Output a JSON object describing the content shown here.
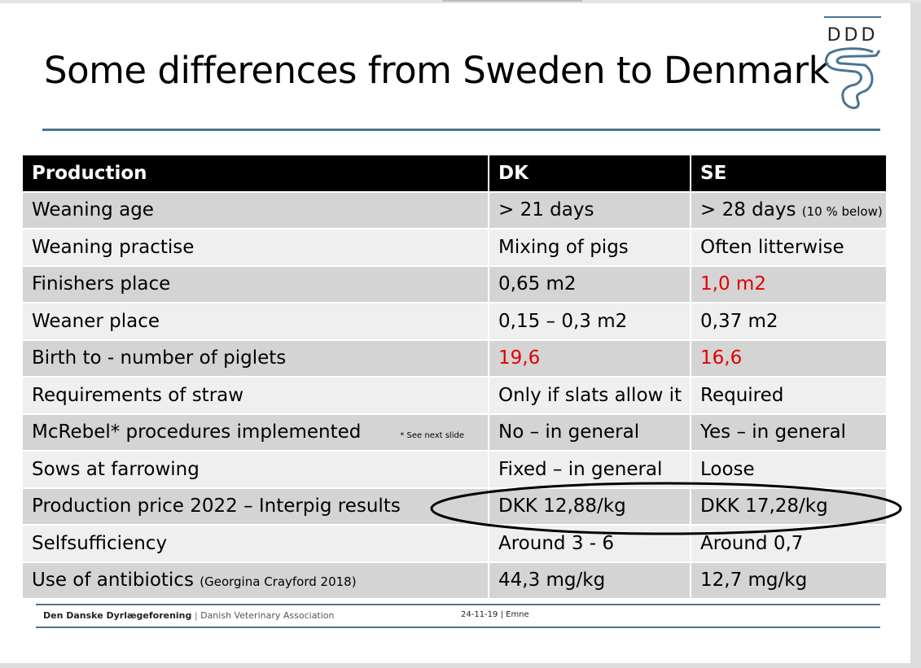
{
  "title": "Some differences from Sweden to Denmark",
  "logo_text": "DDD",
  "table": {
    "headers": [
      "Production",
      "DK",
      "SE"
    ],
    "rows": [
      {
        "label": "Weaning age",
        "dk": "> 21 days",
        "se": "> 28 days",
        "se_note": "(10 % below)"
      },
      {
        "label": "Weaning practise",
        "dk": "Mixing of pigs",
        "se": "Often litterwise"
      },
      {
        "label": "Finishers place",
        "dk": "0,65 m2",
        "se": "1,0 m2"
      },
      {
        "label": "Weaner place",
        "dk": "0,15 – 0,3 m2",
        "se": "0,37 m2"
      },
      {
        "label": "Birth to - number of piglets",
        "dk": "19,6",
        "se": "16,6"
      },
      {
        "label": "Requirements of straw",
        "dk": "Only if slats allow it",
        "se": "Required"
      },
      {
        "label": "McRebel* procedures implemented",
        "label_note": "* See next slide",
        "dk": "No – in general",
        "se": "Yes – in general"
      },
      {
        "label": "Sows at farrowing",
        "dk": "Fixed – in general",
        "se": "Loose"
      },
      {
        "label": "Production price 2022 – Interpig results",
        "dk": "DKK 12,88/kg",
        "se": "DKK 17,28/kg"
      },
      {
        "label": "Selfsufficiency",
        "dk": "Around 3 - 6",
        "se": "Around 0,7"
      },
      {
        "label": "Use of antibiotics",
        "label_note": "(Georgina Crayford 2018)",
        "dk": "44,3 mg/kg",
        "se": "12,7 mg/kg"
      }
    ]
  },
  "footer": {
    "org": "Den Danske Dyrlægeforening",
    "org_en": "Danish Veterinary Association",
    "date": "24-11-19",
    "topic": "Emne"
  },
  "colors": {
    "accent": "#4a7493",
    "highlight": "#e00000"
  }
}
